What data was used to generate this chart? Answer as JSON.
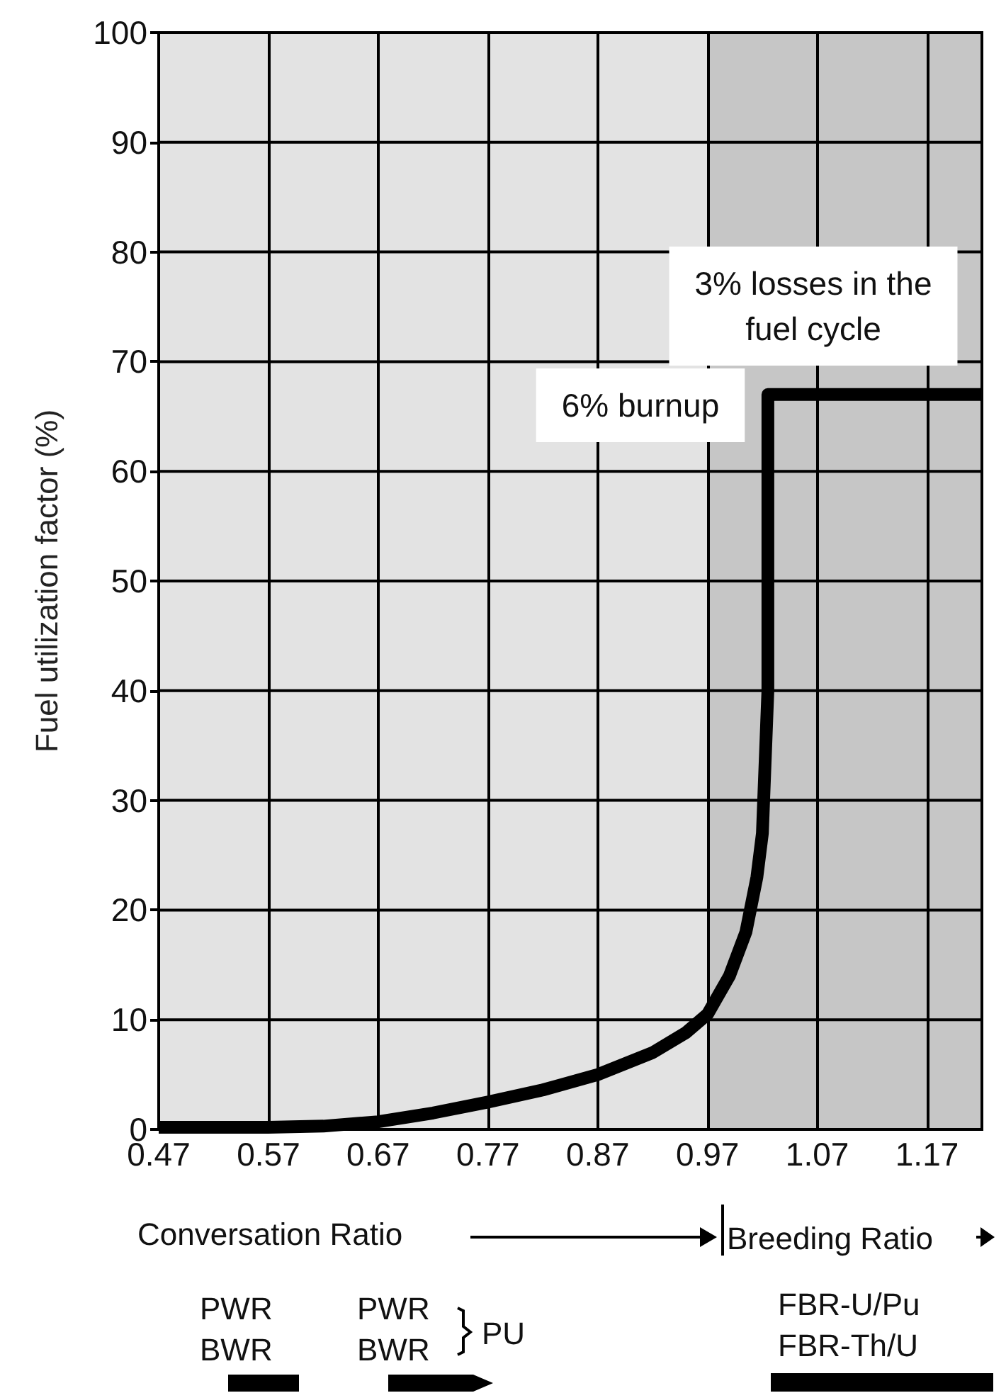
{
  "chart_data": {
    "type": "line",
    "xlabel": "Conversation Ratio",
    "ylabel": "Fuel utilization factor (%)",
    "x": [
      0.47,
      0.52,
      0.57,
      0.62,
      0.67,
      0.72,
      0.77,
      0.82,
      0.87,
      0.92,
      0.95,
      0.97,
      0.99,
      1.005,
      1.015,
      1.02,
      1.025,
      1.025,
      1.22
    ],
    "series": [
      {
        "color": "#000000",
        "values": [
          0.2,
          0.2,
          0.2,
          0.3,
          0.7,
          1.5,
          2.5,
          3.6,
          5,
          7,
          8.8,
          10.5,
          14,
          18,
          23,
          27,
          40,
          67,
          67
        ]
      }
    ],
    "xlim": [
      0.47,
      1.22
    ],
    "ylim": [
      0,
      100
    ],
    "xticks": [
      0.47,
      0.57,
      0.67,
      0.77,
      0.87,
      0.97,
      1.07,
      1.17
    ],
    "yticks": [
      0,
      10,
      20,
      30,
      40,
      50,
      60,
      70,
      80,
      90,
      100
    ],
    "grid": true,
    "marker": "none",
    "bands": [
      {
        "axis": "x",
        "from": 0.47,
        "to": 0.97,
        "color": "#e3e3e3"
      },
      {
        "axis": "x",
        "from": 0.97,
        "to": 1.22,
        "color": "#c6c6c6"
      }
    ],
    "annotations": [
      "6% burnup",
      "3% losses in the\nfuel cycle",
      "Breeding Ratio",
      "PWR\nBWR",
      "PWR\nBWR",
      "PU",
      "FBR-U/Pu\nFBR-Th/U"
    ]
  }
}
